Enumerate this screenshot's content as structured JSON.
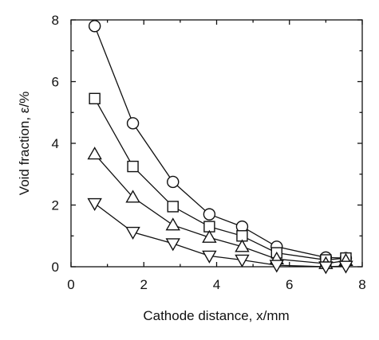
{
  "chart_data": {
    "type": "line",
    "xlabel": "Cathode distance, x/mm",
    "ylabel": "Void fraction, ε/%",
    "xlim": [
      0,
      8
    ],
    "ylim": [
      0,
      8
    ],
    "xticks": [
      "0",
      "2",
      "4",
      "6",
      "8"
    ],
    "yticks": [
      "0",
      "2",
      "4",
      "6",
      "8"
    ],
    "grid": false,
    "legend": "none",
    "series": [
      {
        "marker": "circle",
        "points": [
          [
            0.65,
            7.8
          ],
          [
            1.7,
            4.65
          ],
          [
            2.8,
            2.75
          ],
          [
            3.8,
            1.7
          ],
          [
            4.7,
            1.3
          ],
          [
            5.65,
            0.65
          ],
          [
            7.0,
            0.3
          ],
          [
            7.55,
            0.28
          ]
        ]
      },
      {
        "marker": "square",
        "points": [
          [
            0.65,
            5.45
          ],
          [
            1.7,
            3.25
          ],
          [
            2.8,
            1.95
          ],
          [
            3.8,
            1.3
          ],
          [
            4.7,
            1.0
          ],
          [
            5.65,
            0.45
          ],
          [
            7.0,
            0.22
          ],
          [
            7.55,
            0.28
          ]
        ]
      },
      {
        "marker": "triangle-up",
        "points": [
          [
            0.65,
            3.65
          ],
          [
            1.7,
            2.25
          ],
          [
            2.8,
            1.35
          ],
          [
            3.8,
            0.95
          ],
          [
            4.7,
            0.65
          ],
          [
            5.65,
            0.25
          ],
          [
            7.0,
            0.1
          ],
          [
            7.55,
            0.2
          ]
        ]
      },
      {
        "marker": "triangle-down",
        "points": [
          [
            0.65,
            2.05
          ],
          [
            1.7,
            1.12
          ],
          [
            2.8,
            0.75
          ],
          [
            3.8,
            0.35
          ],
          [
            4.7,
            0.22
          ],
          [
            5.65,
            0.05
          ],
          [
            7.0,
            0.0
          ],
          [
            7.55,
            0.02
          ]
        ]
      }
    ]
  }
}
